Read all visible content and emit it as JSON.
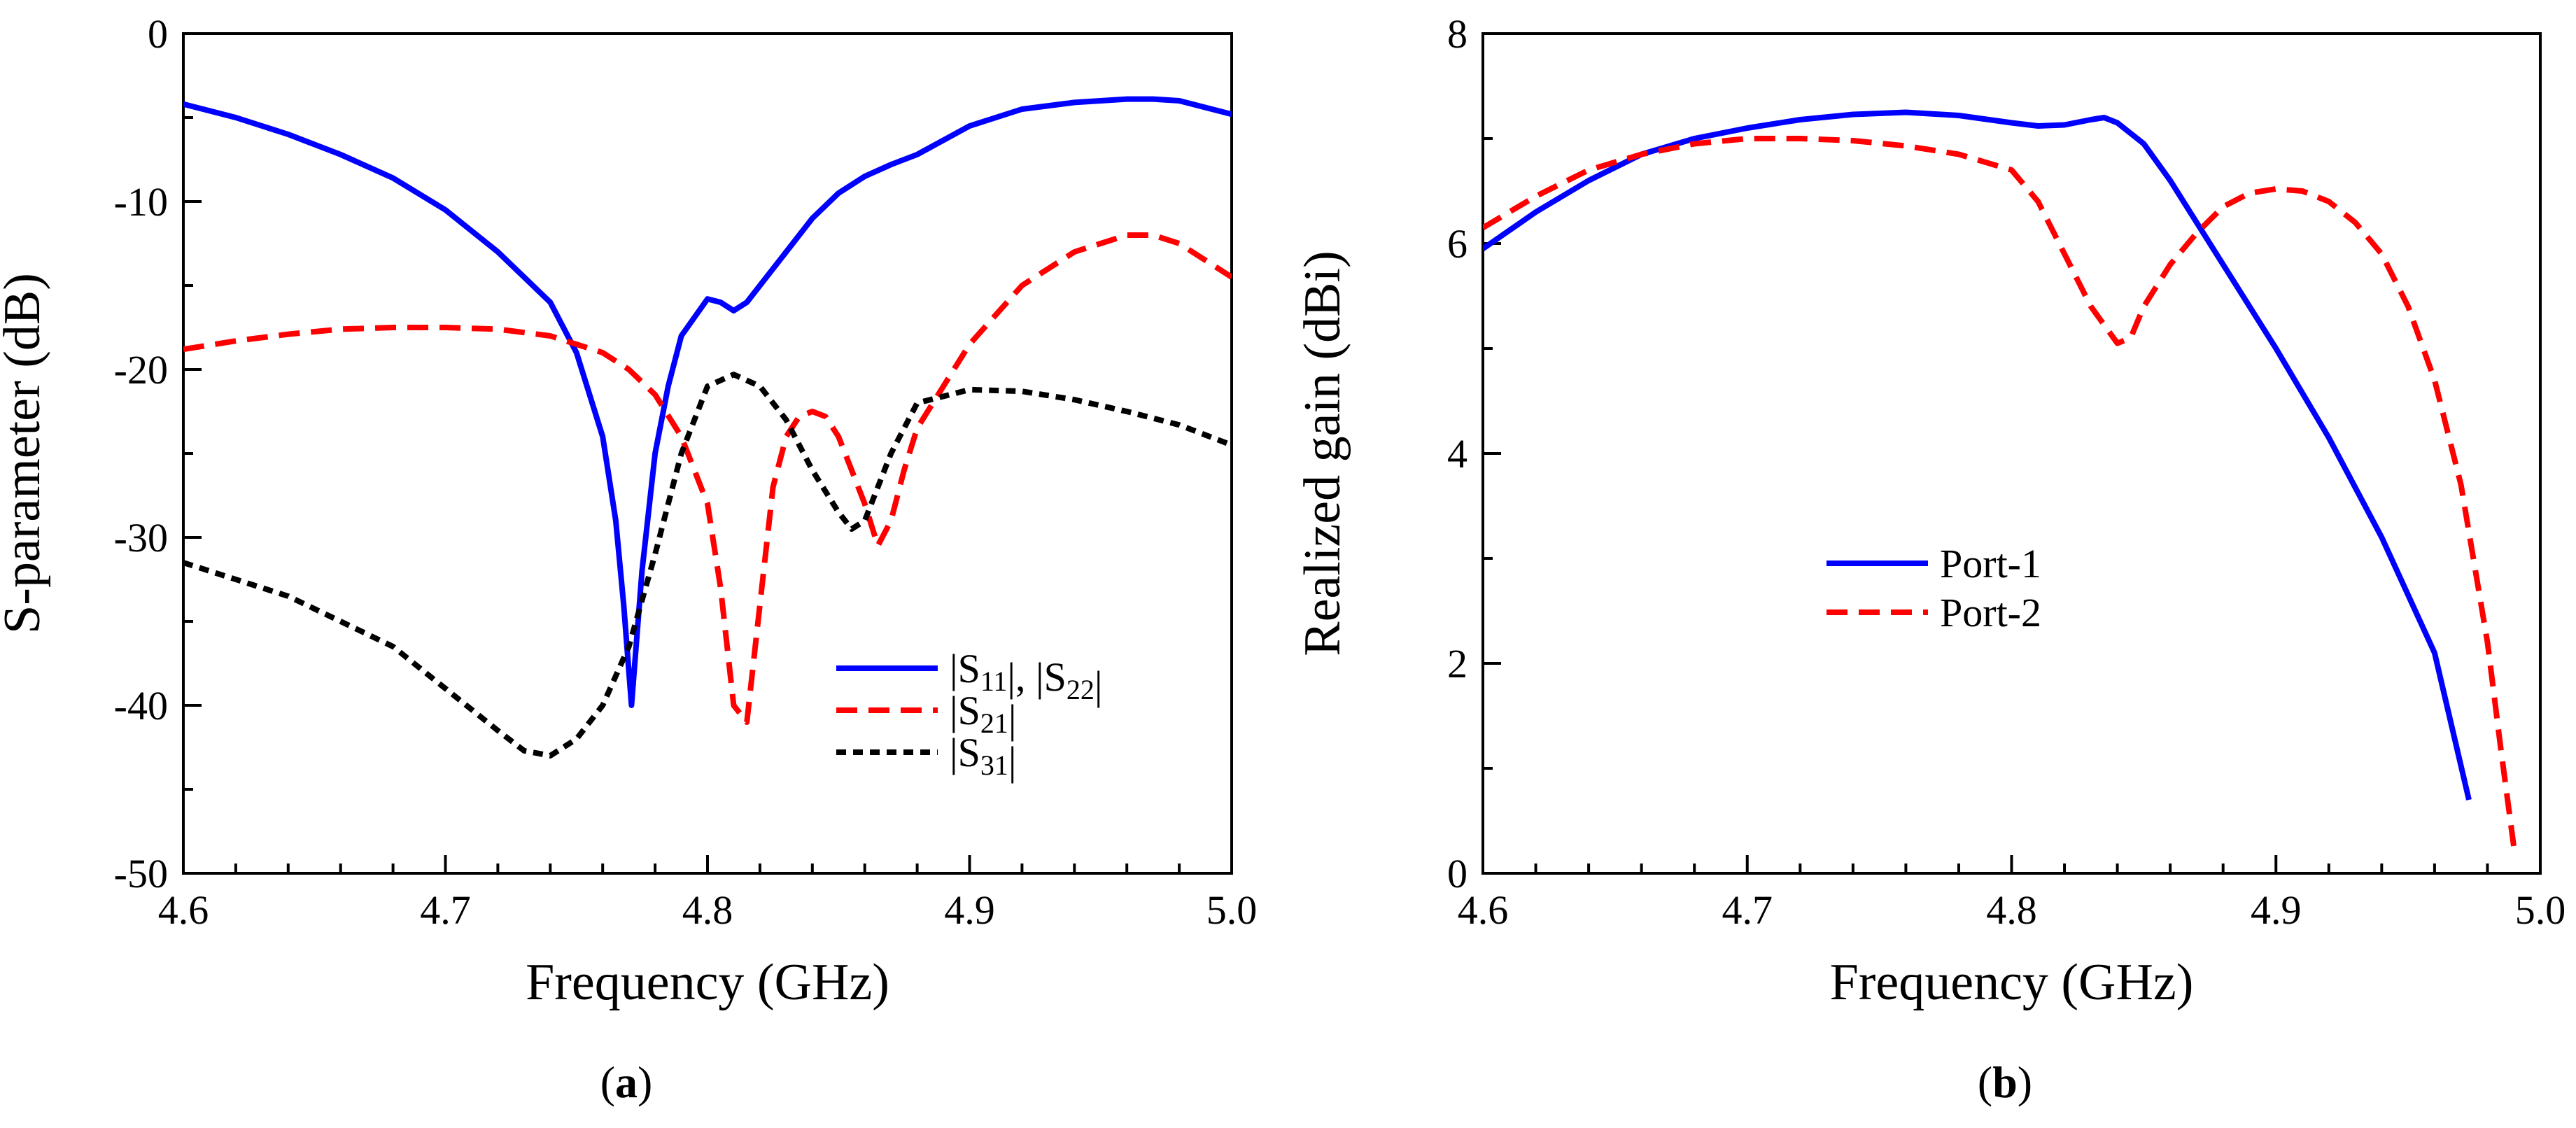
{
  "chart_data": [
    {
      "type": "line",
      "label": "(a)",
      "label_letter": "a",
      "xlabel": "Frequency (GHz)",
      "ylabel": "S-parameter (dB)",
      "xlim": [
        4.6,
        5.0
      ],
      "ylim": [
        -50,
        0
      ],
      "xticks": [
        "4.6",
        "4.7",
        "4.8",
        "4.9",
        "5.0"
      ],
      "yticks": [
        "0",
        "-10",
        "-20",
        "-30",
        "-40",
        "-50"
      ],
      "legend_position": "lower-right",
      "series": [
        {
          "name": "|S11|, |S22|",
          "legend_parts": [
            {
              "text": "|S",
              "sub": "11"
            },
            {
              "text": "|, |S",
              "sub": "22"
            },
            {
              "text": "|",
              "sub": ""
            }
          ],
          "color": "#0000ff",
          "dash": "solid",
          "x": [
            4.6,
            4.62,
            4.64,
            4.66,
            4.68,
            4.7,
            4.72,
            4.74,
            4.75,
            4.76,
            4.765,
            4.768,
            4.771,
            4.775,
            4.78,
            4.785,
            4.79,
            4.8,
            4.805,
            4.81,
            4.815,
            4.82,
            4.83,
            4.84,
            4.85,
            4.86,
            4.87,
            4.88,
            4.9,
            4.92,
            4.94,
            4.96,
            4.97,
            4.98,
            5.0
          ],
          "y": [
            -4.2,
            -5.0,
            -6.0,
            -7.2,
            -8.6,
            -10.5,
            -13.0,
            -16.0,
            -19.0,
            -24.0,
            -29.0,
            -34.0,
            -40.0,
            -32.0,
            -25.0,
            -21.0,
            -18.0,
            -15.8,
            -16.0,
            -16.5,
            -16.0,
            -15.0,
            -13.0,
            -11.0,
            -9.5,
            -8.5,
            -7.8,
            -7.2,
            -5.5,
            -4.5,
            -4.1,
            -3.9,
            -3.9,
            -4.0,
            -4.8
          ]
        },
        {
          "name": "|S21|",
          "legend_parts": [
            {
              "text": "|S",
              "sub": "21"
            },
            {
              "text": "|",
              "sub": ""
            }
          ],
          "color": "#ff0000",
          "dash": "dashed",
          "x": [
            4.6,
            4.62,
            4.64,
            4.66,
            4.68,
            4.7,
            4.72,
            4.74,
            4.76,
            4.77,
            4.78,
            4.79,
            4.8,
            4.805,
            4.81,
            4.815,
            4.82,
            4.825,
            4.83,
            4.835,
            4.84,
            4.845,
            4.85,
            4.855,
            4.86,
            4.865,
            4.87,
            4.875,
            4.88,
            4.9,
            4.92,
            4.94,
            4.96,
            4.97,
            4.98,
            5.0
          ],
          "y": [
            -18.8,
            -18.3,
            -17.9,
            -17.6,
            -17.5,
            -17.5,
            -17.6,
            -18.0,
            -19.0,
            -20.0,
            -21.5,
            -24.0,
            -28.0,
            -33.0,
            -40.0,
            -41.0,
            -34.0,
            -27.0,
            -24.0,
            -22.8,
            -22.5,
            -22.8,
            -24.0,
            -26.0,
            -28.0,
            -30.5,
            -29.0,
            -26.0,
            -23.5,
            -18.5,
            -15.0,
            -13.0,
            -12.0,
            -12.0,
            -12.5,
            -14.5
          ]
        },
        {
          "name": "|S31|",
          "legend_parts": [
            {
              "text": "|S",
              "sub": "31"
            },
            {
              "text": "|",
              "sub": ""
            }
          ],
          "color": "#000000",
          "dash": "dash-dot",
          "x": [
            4.6,
            4.62,
            4.64,
            4.66,
            4.68,
            4.7,
            4.72,
            4.73,
            4.74,
            4.75,
            4.76,
            4.77,
            4.78,
            4.79,
            4.8,
            4.81,
            4.82,
            4.83,
            4.84,
            4.85,
            4.855,
            4.86,
            4.87,
            4.88,
            4.9,
            4.92,
            4.94,
            4.96,
            4.98,
            5.0
          ],
          "y": [
            -31.5,
            -32.5,
            -33.5,
            -35.0,
            -36.5,
            -39.0,
            -41.5,
            -42.7,
            -43.0,
            -42.0,
            -40.0,
            -36.5,
            -31.0,
            -25.0,
            -21.0,
            -20.3,
            -21.0,
            -23.0,
            -26.0,
            -28.5,
            -29.5,
            -29.0,
            -25.0,
            -22.0,
            -21.2,
            -21.3,
            -21.8,
            -22.5,
            -23.3,
            -24.5
          ]
        }
      ]
    },
    {
      "type": "line",
      "label": "(b)",
      "label_letter": "b",
      "xlabel": "Frequency (GHz)",
      "ylabel": "Realized gain (dBi)",
      "xlim": [
        4.6,
        5.0
      ],
      "ylim": [
        0,
        8
      ],
      "xticks": [
        "4.6",
        "4.7",
        "4.8",
        "4.9",
        "5.0"
      ],
      "yticks": [
        "0",
        "2",
        "4",
        "6",
        "8"
      ],
      "legend_position": "center",
      "series": [
        {
          "name": "Port-1",
          "color": "#0000ff",
          "dash": "solid",
          "x": [
            4.6,
            4.62,
            4.64,
            4.66,
            4.68,
            4.7,
            4.72,
            4.74,
            4.76,
            4.78,
            4.8,
            4.81,
            4.82,
            4.83,
            4.835,
            4.84,
            4.85,
            4.86,
            4.88,
            4.9,
            4.92,
            4.94,
            4.96,
            4.973
          ],
          "y": [
            5.95,
            6.3,
            6.6,
            6.85,
            7.0,
            7.1,
            7.18,
            7.23,
            7.25,
            7.22,
            7.15,
            7.12,
            7.13,
            7.18,
            7.2,
            7.15,
            6.95,
            6.6,
            5.8,
            5.0,
            4.15,
            3.2,
            2.1,
            0.7
          ]
        },
        {
          "name": "Port-2",
          "color": "#ff0000",
          "dash": "dashed",
          "x": [
            4.6,
            4.62,
            4.64,
            4.66,
            4.68,
            4.7,
            4.72,
            4.74,
            4.76,
            4.78,
            4.8,
            4.81,
            4.82,
            4.83,
            4.84,
            4.845,
            4.85,
            4.86,
            4.87,
            4.88,
            4.89,
            4.9,
            4.91,
            4.92,
            4.93,
            4.94,
            4.95,
            4.96,
            4.97,
            4.98,
            4.985,
            4.99
          ],
          "y": [
            6.15,
            6.45,
            6.7,
            6.85,
            6.95,
            7.0,
            7.0,
            6.98,
            6.93,
            6.85,
            6.7,
            6.4,
            5.9,
            5.4,
            5.05,
            5.1,
            5.4,
            5.8,
            6.1,
            6.35,
            6.48,
            6.52,
            6.5,
            6.4,
            6.2,
            5.9,
            5.4,
            4.7,
            3.7,
            2.2,
            1.2,
            0.25
          ]
        }
      ]
    }
  ]
}
